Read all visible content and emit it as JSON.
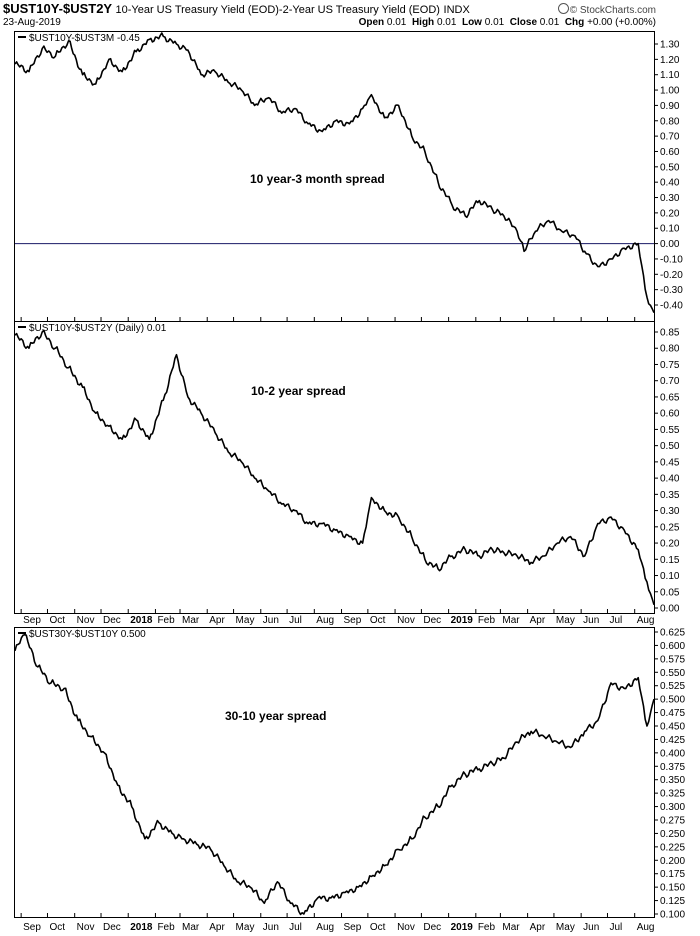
{
  "header": {
    "symbol": "$UST10Y-$UST2Y",
    "description": "10-Year US Treasury Yield (EOD)-2-Year US Treasury Yield (EOD)",
    "exchange": "INDX",
    "date": "23-Aug-2019",
    "open_label": "Open",
    "open": "0.01",
    "high_label": "High",
    "high": "0.01",
    "low_label": "Low",
    "low": "0.01",
    "close_label": "Close",
    "close": "0.01",
    "chg_label": "Chg",
    "chg": "+0.00 (+0.00%)",
    "brand": "© StockCharts.com"
  },
  "panels": {
    "p1": {
      "label": "$UST10Y-$UST3M -0.45",
      "annotation": "10 year-3 month spread"
    },
    "p2": {
      "label": "$UST10Y-$UST2Y (Daily) 0.01",
      "annotation": "10-2 year spread"
    },
    "p3": {
      "label": "$UST30Y-$UST10Y 0.500",
      "annotation": "30-10 year spread"
    }
  },
  "chart_data": [
    {
      "type": "line",
      "title": "$UST10Y-$UST3M",
      "annotation": "10 year-3 month spread",
      "x_ticks": [
        "Sep",
        "Oct",
        "Nov",
        "Dec",
        "2018",
        "Feb",
        "Mar",
        "Apr",
        "May",
        "Jun",
        "Jul",
        "Aug",
        "Sep",
        "Oct",
        "Nov",
        "Dec",
        "2019",
        "Feb",
        "Mar",
        "Apr",
        "May",
        "Jun",
        "Jul",
        "Aug"
      ],
      "y_ticks": [
        1.3,
        1.2,
        1.1,
        1.0,
        0.9,
        0.8,
        0.7,
        0.6,
        0.5,
        0.4,
        0.3,
        0.2,
        0.1,
        0.0,
        -0.1,
        -0.2,
        -0.3,
        -0.4
      ],
      "ylim": [
        -0.45,
        1.35
      ],
      "reference_line": 0.0,
      "series": [
        {
          "x": [
            "2017-08-25",
            "2017-09-10",
            "2017-09-25",
            "2017-10-10",
            "2017-10-25",
            "2017-11-10",
            "2017-11-25",
            "2017-12-10",
            "2017-12-25",
            "2018-01-10",
            "2018-01-25",
            "2018-02-10",
            "2018-02-25",
            "2018-03-10",
            "2018-03-25",
            "2018-04-10",
            "2018-04-25",
            "2018-05-10",
            "2018-05-25",
            "2018-06-10",
            "2018-06-25",
            "2018-07-10",
            "2018-07-25",
            "2018-08-10",
            "2018-08-25",
            "2018-09-10",
            "2018-09-25",
            "2018-10-05",
            "2018-10-20",
            "2018-11-05",
            "2018-11-20",
            "2018-12-05",
            "2018-12-20",
            "2019-01-05",
            "2019-01-20",
            "2019-02-05",
            "2019-02-20",
            "2019-03-05",
            "2019-03-20",
            "2019-03-28",
            "2019-04-10",
            "2019-04-25",
            "2019-05-10",
            "2019-05-25",
            "2019-06-05",
            "2019-06-20",
            "2019-07-05",
            "2019-07-20",
            "2019-08-05",
            "2019-08-15",
            "2019-08-23"
          ],
          "values": [
            1.17,
            1.12,
            1.27,
            1.22,
            1.32,
            1.1,
            1.04,
            1.2,
            1.12,
            1.25,
            1.33,
            1.35,
            1.3,
            1.26,
            1.1,
            1.12,
            1.05,
            1.0,
            0.9,
            0.95,
            0.85,
            0.88,
            0.78,
            0.73,
            0.8,
            0.78,
            0.88,
            0.97,
            0.82,
            0.9,
            0.7,
            0.6,
            0.4,
            0.25,
            0.18,
            0.28,
            0.22,
            0.18,
            0.08,
            -0.05,
            0.08,
            0.15,
            0.08,
            0.05,
            -0.05,
            -0.15,
            -0.1,
            -0.03,
            0.0,
            -0.35,
            -0.45
          ]
        }
      ]
    },
    {
      "type": "line",
      "title": "$UST10Y-$UST2Y",
      "annotation": "10-2 year spread",
      "x_ticks": [
        "Sep",
        "Oct",
        "Nov",
        "Dec",
        "2018",
        "Feb",
        "Mar",
        "Apr",
        "May",
        "Jun",
        "Jul",
        "Aug",
        "Sep",
        "Oct",
        "Nov",
        "Dec",
        "2019",
        "Feb",
        "Mar",
        "Apr",
        "May",
        "Jun",
        "Jul",
        "Aug"
      ],
      "y_ticks": [
        0.85,
        0.8,
        0.75,
        0.7,
        0.65,
        0.6,
        0.55,
        0.5,
        0.45,
        0.4,
        0.35,
        0.3,
        0.25,
        0.2,
        0.15,
        0.1,
        0.05,
        0.0
      ],
      "ylim": [
        -0.01,
        0.87
      ],
      "series": [
        {
          "x": [
            "2017-08-25",
            "2017-09-10",
            "2017-09-25",
            "2017-10-10",
            "2017-10-25",
            "2017-11-10",
            "2017-11-25",
            "2017-12-10",
            "2017-12-25",
            "2018-01-10",
            "2018-01-25",
            "2018-02-10",
            "2018-02-25",
            "2018-03-10",
            "2018-03-25",
            "2018-04-10",
            "2018-04-25",
            "2018-05-10",
            "2018-05-25",
            "2018-06-10",
            "2018-06-25",
            "2018-07-10",
            "2018-07-25",
            "2018-08-10",
            "2018-08-25",
            "2018-09-10",
            "2018-09-25",
            "2018-10-05",
            "2018-10-20",
            "2018-11-05",
            "2018-11-20",
            "2018-12-05",
            "2018-12-20",
            "2019-01-05",
            "2019-01-20",
            "2019-02-05",
            "2019-02-20",
            "2019-03-05",
            "2019-03-20",
            "2019-04-05",
            "2019-04-20",
            "2019-05-05",
            "2019-05-20",
            "2019-06-05",
            "2019-06-20",
            "2019-07-05",
            "2019-07-20",
            "2019-08-05",
            "2019-08-15",
            "2019-08-23"
          ],
          "values": [
            0.84,
            0.8,
            0.85,
            0.8,
            0.74,
            0.68,
            0.6,
            0.56,
            0.52,
            0.58,
            0.52,
            0.64,
            0.78,
            0.65,
            0.6,
            0.54,
            0.48,
            0.45,
            0.4,
            0.36,
            0.32,
            0.3,
            0.26,
            0.26,
            0.24,
            0.22,
            0.2,
            0.34,
            0.3,
            0.28,
            0.22,
            0.15,
            0.12,
            0.16,
            0.18,
            0.16,
            0.18,
            0.17,
            0.16,
            0.14,
            0.16,
            0.2,
            0.22,
            0.16,
            0.26,
            0.28,
            0.24,
            0.18,
            0.08,
            0.01
          ]
        }
      ]
    },
    {
      "type": "line",
      "title": "$UST30Y-$UST10Y",
      "annotation": "30-10 year spread",
      "x_ticks": [
        "Sep",
        "Oct",
        "Nov",
        "Dec",
        "2018",
        "Feb",
        "Mar",
        "Apr",
        "May",
        "Jun",
        "Jul",
        "Aug",
        "Sep",
        "Oct",
        "Nov",
        "Dec",
        "2019",
        "Feb",
        "Mar",
        "Apr",
        "May",
        "Jun",
        "Jul",
        "Aug"
      ],
      "y_ticks": [
        0.625,
        0.6,
        0.575,
        0.55,
        0.525,
        0.5,
        0.475,
        0.45,
        0.425,
        0.4,
        0.375,
        0.35,
        0.325,
        0.3,
        0.275,
        0.25,
        0.225,
        0.2,
        0.175,
        0.15,
        0.125,
        0.1
      ],
      "ylim": [
        0.1,
        0.63
      ],
      "series": [
        {
          "x": [
            "2017-08-25",
            "2017-09-05",
            "2017-09-20",
            "2017-10-05",
            "2017-10-20",
            "2017-11-05",
            "2017-11-20",
            "2017-12-05",
            "2017-12-20",
            "2018-01-05",
            "2018-01-20",
            "2018-02-05",
            "2018-02-20",
            "2018-03-05",
            "2018-03-20",
            "2018-04-05",
            "2018-04-20",
            "2018-05-05",
            "2018-05-20",
            "2018-06-05",
            "2018-06-20",
            "2018-07-05",
            "2018-07-20",
            "2018-08-05",
            "2018-08-20",
            "2018-09-05",
            "2018-09-20",
            "2018-10-05",
            "2018-10-20",
            "2018-11-05",
            "2018-11-20",
            "2018-12-05",
            "2018-12-20",
            "2019-01-05",
            "2019-01-20",
            "2019-02-05",
            "2019-02-20",
            "2019-03-05",
            "2019-03-20",
            "2019-04-05",
            "2019-04-20",
            "2019-05-05",
            "2019-05-20",
            "2019-06-05",
            "2019-06-20",
            "2019-07-05",
            "2019-07-20",
            "2019-08-05",
            "2019-08-15",
            "2019-08-23"
          ],
          "values": [
            0.59,
            0.62,
            0.56,
            0.53,
            0.52,
            0.46,
            0.43,
            0.4,
            0.34,
            0.3,
            0.24,
            0.27,
            0.25,
            0.24,
            0.23,
            0.22,
            0.19,
            0.16,
            0.15,
            0.12,
            0.16,
            0.12,
            0.1,
            0.13,
            0.13,
            0.14,
            0.15,
            0.17,
            0.19,
            0.22,
            0.24,
            0.28,
            0.3,
            0.34,
            0.36,
            0.37,
            0.38,
            0.39,
            0.42,
            0.44,
            0.43,
            0.42,
            0.41,
            0.44,
            0.46,
            0.53,
            0.52,
            0.54,
            0.45,
            0.5
          ]
        }
      ]
    }
  ]
}
